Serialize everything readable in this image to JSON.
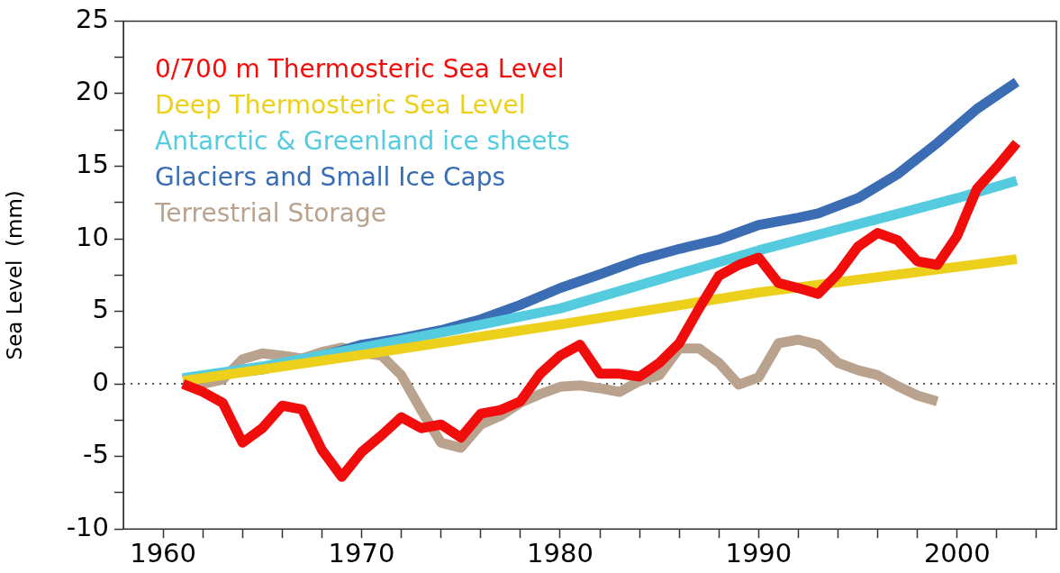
{
  "chart_data": {
    "type": "line",
    "ylabel": "Sea Level  (mm)",
    "xlim": [
      1958,
      2005
    ],
    "ylim": [
      -10,
      25
    ],
    "xticks": [
      {
        "value": 1960,
        "label": "1960"
      },
      {
        "value": 1962,
        "label": null
      },
      {
        "value": 1964,
        "label": null
      },
      {
        "value": 1966,
        "label": null
      },
      {
        "value": 1968,
        "label": null
      },
      {
        "value": 1970,
        "label": "1970"
      },
      {
        "value": 1972,
        "label": null
      },
      {
        "value": 1974,
        "label": null
      },
      {
        "value": 1976,
        "label": null
      },
      {
        "value": 1978,
        "label": null
      },
      {
        "value": 1980,
        "label": "1980"
      },
      {
        "value": 1982,
        "label": null
      },
      {
        "value": 1984,
        "label": null
      },
      {
        "value": 1986,
        "label": null
      },
      {
        "value": 1988,
        "label": null
      },
      {
        "value": 1990,
        "label": "1990"
      },
      {
        "value": 1992,
        "label": null
      },
      {
        "value": 1994,
        "label": null
      },
      {
        "value": 1996,
        "label": null
      },
      {
        "value": 1998,
        "label": null
      },
      {
        "value": 2000,
        "label": "2000"
      },
      {
        "value": 2002,
        "label": null
      },
      {
        "value": 2004,
        "label": null
      }
    ],
    "yticks": [
      -10,
      {
        "value": -7.5,
        "label": null
      },
      -5,
      {
        "value": -2.5,
        "label": null
      },
      0,
      {
        "value": 2.5,
        "label": null
      },
      5,
      {
        "value": 7.5,
        "label": null
      },
      10,
      {
        "value": 12.5,
        "label": null
      },
      15,
      {
        "value": 17.5,
        "label": null
      },
      20,
      {
        "value": 22.5,
        "label": null
      },
      25
    ],
    "grid": false,
    "legend": "top left",
    "marker": "none",
    "line_style": "solid",
    "ref_lines": [
      {
        "axis": "y",
        "value": 0,
        "color": "#555555",
        "line_style": "dotted"
      }
    ],
    "series": [
      {
        "name": "0/700 m Thermosteric Sea Level",
        "color": "#f20d0d",
        "x": [
          1961,
          1962,
          1963,
          1964,
          1965,
          1966,
          1967,
          1968,
          1969,
          1970,
          1971,
          1972,
          1973,
          1974,
          1975,
          1976,
          1977,
          1978,
          1979,
          1980,
          1981,
          1982,
          1983,
          1984,
          1985,
          1986,
          1987,
          1988,
          1989,
          1990,
          1991,
          1992,
          1993,
          1994,
          1995,
          1996,
          1997,
          1998,
          1999,
          2000,
          2001,
          2002,
          2003
        ],
        "values": [
          0,
          -0.55,
          -1.3,
          -4.05,
          -3.05,
          -1.5,
          -1.75,
          -4.55,
          -6.4,
          -4.7,
          -3.55,
          -2.3,
          -3.05,
          -2.8,
          -3.7,
          -2.05,
          -1.8,
          -1.2,
          0.7,
          1.95,
          2.7,
          0.7,
          0.7,
          0.5,
          1.45,
          2.8,
          5.2,
          7.45,
          8.2,
          8.7,
          6.95,
          6.6,
          6.2,
          7.6,
          9.45,
          10.4,
          9.9,
          8.45,
          8.2,
          10.2,
          13.45,
          14.95,
          16.6
        ]
      },
      {
        "name": "Deep Thermosteric Sea Level",
        "color": "#ecd01c",
        "x": [
          1961,
          1970,
          1980,
          1990,
          2003
        ],
        "values": [
          0.2,
          2.0,
          4.1,
          6.3,
          8.6
        ]
      },
      {
        "name": "Antarctic & Greenland ice sheets",
        "color": "#55cbe0",
        "x": [
          1961,
          1965,
          1970,
          1975,
          1980,
          1985,
          1990,
          1995,
          2000,
          2003
        ],
        "values": [
          0.4,
          1.2,
          2.5,
          3.8,
          5.2,
          7.2,
          9.2,
          11.0,
          12.8,
          14.0
        ]
      },
      {
        "name": "Glaciers and Small Ice Caps",
        "color": "#3a6db3",
        "x": [
          1961,
          1963,
          1965,
          1967,
          1969,
          1970,
          1972,
          1974,
          1976,
          1978,
          1980,
          1982,
          1984,
          1986,
          1988,
          1990,
          1992,
          1993,
          1995,
          1997,
          1999,
          2001,
          2003
        ],
        "values": [
          0.3,
          0.7,
          1.0,
          1.6,
          2.3,
          2.7,
          3.15,
          3.7,
          4.45,
          5.45,
          6.6,
          7.55,
          8.55,
          9.3,
          9.95,
          10.95,
          11.45,
          11.75,
          12.8,
          14.45,
          16.6,
          18.95,
          20.8
        ]
      },
      {
        "name": "Terrestrial Storage",
        "color": "#b9a38e",
        "x": [
          1961,
          1962,
          1963,
          1964,
          1965,
          1966,
          1967,
          1968,
          1969,
          1970,
          1971,
          1972,
          1973,
          1974,
          1975,
          1976,
          1977,
          1978,
          1979,
          1980,
          1981,
          1982,
          1983,
          1984,
          1985,
          1986,
          1987,
          1988,
          1989,
          1990,
          1991,
          1992,
          1993,
          1994,
          1995,
          1996,
          1997,
          1998,
          1999
        ],
        "values": [
          0,
          0,
          0.3,
          1.7,
          2.1,
          1.95,
          1.75,
          2.2,
          2.5,
          2.15,
          1.95,
          0.6,
          -1.8,
          -4.05,
          -4.4,
          -2.8,
          -2.2,
          -1.3,
          -0.7,
          -0.2,
          -0.1,
          -0.3,
          -0.55,
          0.2,
          0.6,
          2.45,
          2.45,
          1.45,
          -0.05,
          0.45,
          2.8,
          3.05,
          2.7,
          1.45,
          0.95,
          0.6,
          -0.15,
          -0.8,
          -1.2
        ]
      }
    ]
  }
}
